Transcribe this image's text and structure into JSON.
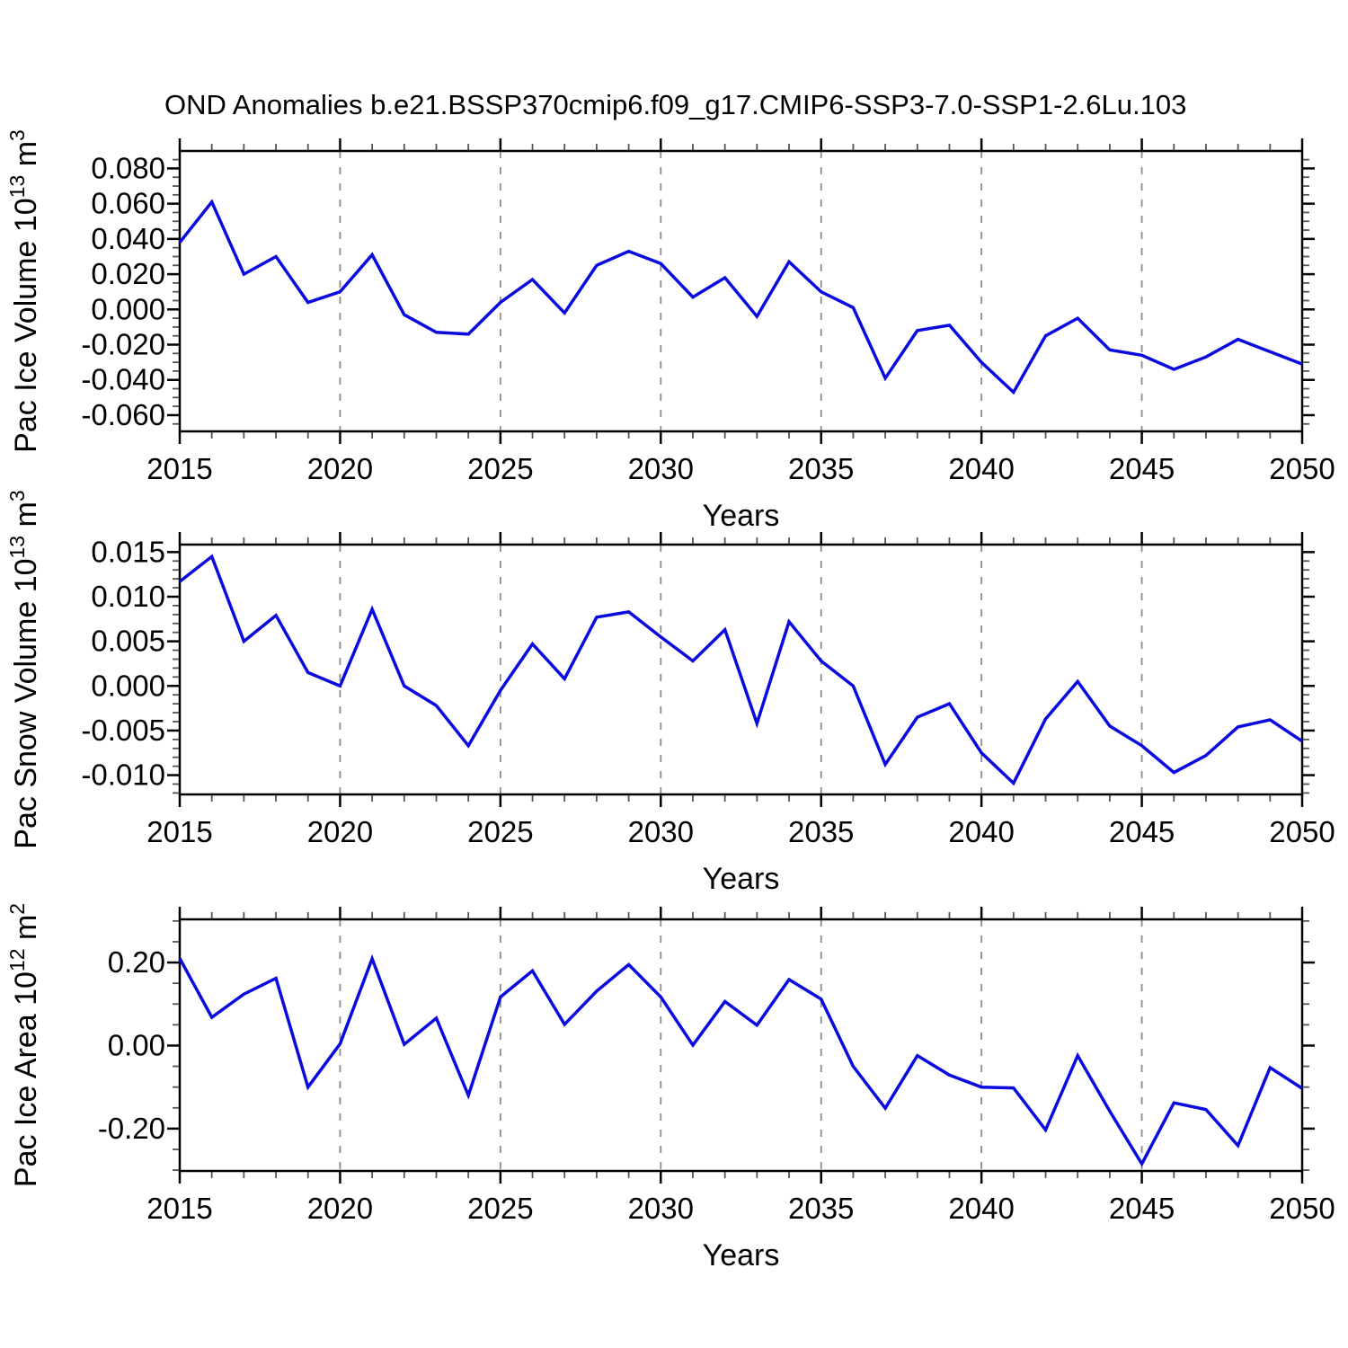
{
  "chart_data": {
    "type": "line",
    "title": "OND Anomalies b.e21.BSSP370cmip6.f09_g17.CMIP6-SSP3-7.0-SSP1-2.6Lu.103",
    "x_label": "Years",
    "x_range": [
      2015,
      2050
    ],
    "x_major_ticks": [
      2015,
      2020,
      2025,
      2030,
      2035,
      2040,
      2045,
      2050
    ],
    "x_major_tick_labels": [
      "2015",
      "2020",
      "2025",
      "2030",
      "2035",
      "2040",
      "2045",
      "2050"
    ],
    "x_minor_step": 1,
    "x_gridline_years": [
      2020,
      2025,
      2030,
      2035,
      2040,
      2045
    ],
    "grid_style": "dashed",
    "legend": "none",
    "line_color": "#0a0ae0",
    "grid_color": "#8c8c8c",
    "axis_color": "#000000",
    "minor_tick_color": "#555555",
    "years": [
      2015,
      2016,
      2017,
      2018,
      2019,
      2020,
      2021,
      2022,
      2023,
      2024,
      2025,
      2026,
      2027,
      2028,
      2029,
      2030,
      2031,
      2032,
      2033,
      2034,
      2035,
      2036,
      2037,
      2038,
      2039,
      2040,
      2041,
      2042,
      2043,
      2044,
      2045,
      2046,
      2047,
      2048,
      2049,
      2050
    ],
    "panels": [
      {
        "id": "pac-ice-volume",
        "ylabel_runs": [
          {
            "t": "Pac Ice Volume 10"
          },
          {
            "t": "13",
            "sup": true
          },
          {
            "t": " m"
          },
          {
            "t": "3",
            "sup": true
          }
        ],
        "ylim": [
          -0.0692,
          0.0899
        ],
        "y_major_ticks": [
          0.08,
          0.06,
          0.04,
          0.02,
          0.0,
          -0.02,
          -0.04,
          -0.06
        ],
        "y_major_tick_labels": [
          "0.080",
          "0.060",
          "0.040",
          "0.020",
          "0.000",
          "-0.020",
          "-0.040",
          "-0.060"
        ],
        "y_minor_step": 0.005,
        "values": [
          0.038,
          0.061,
          0.02,
          0.03,
          0.004,
          0.01,
          0.031,
          -0.003,
          -0.013,
          -0.014,
          0.004,
          0.017,
          -0.002,
          0.025,
          0.033,
          0.026,
          0.007,
          0.018,
          -0.004,
          0.027,
          0.01,
          0.001,
          -0.039,
          -0.012,
          -0.009,
          -0.03,
          -0.047,
          -0.015,
          -0.005,
          -0.023,
          -0.026,
          -0.034,
          -0.027,
          -0.017,
          -0.024,
          -0.031
        ]
      },
      {
        "id": "pac-snow-volume",
        "ylabel_runs": [
          {
            "t": "Pac Snow Volume 10"
          },
          {
            "t": "13",
            "sup": true
          },
          {
            "t": " m"
          },
          {
            "t": "3",
            "sup": true
          }
        ],
        "ylim": [
          -0.01216,
          0.01584
        ],
        "y_major_ticks": [
          0.015,
          0.01,
          0.005,
          0.0,
          -0.005,
          -0.01
        ],
        "y_major_tick_labels": [
          "0.015",
          "0.010",
          "0.005",
          "0.000",
          "-0.005",
          "-0.010"
        ],
        "y_minor_step": 0.001,
        "values": [
          0.0117,
          0.0145,
          0.005,
          0.0079,
          0.0015,
          0.0,
          0.0086,
          0.0,
          -0.0022,
          -0.0067,
          -0.0005,
          0.0047,
          0.0008,
          0.0077,
          0.0083,
          0.0055,
          0.0028,
          0.0063,
          -0.0042,
          0.0072,
          0.0028,
          0.0,
          -0.0088,
          -0.0035,
          -0.002,
          -0.0075,
          -0.0109,
          -0.0037,
          0.0005,
          -0.0045,
          -0.0067,
          -0.0097,
          -0.0078,
          -0.0046,
          -0.0038,
          -0.0062
        ]
      },
      {
        "id": "pac-ice-area",
        "ylabel_runs": [
          {
            "t": "Pac Ice Area 10"
          },
          {
            "t": "12",
            "sup": true
          },
          {
            "t": " m"
          },
          {
            "t": "2",
            "sup": true
          }
        ],
        "ylim": [
          -0.302,
          0.304
        ],
        "y_major_ticks": [
          0.2,
          0.0,
          -0.2
        ],
        "y_major_tick_labels": [
          "0.20",
          "0.00",
          "-0.20"
        ],
        "y_minor_step": 0.05,
        "values": [
          0.21,
          0.068,
          0.124,
          0.162,
          -0.1,
          0.004,
          0.209,
          0.003,
          0.066,
          -0.12,
          0.117,
          0.18,
          0.051,
          0.131,
          0.195,
          0.117,
          0.001,
          0.106,
          0.049,
          0.159,
          0.112,
          -0.05,
          -0.151,
          -0.024,
          -0.071,
          -0.1,
          -0.102,
          -0.203,
          -0.024,
          -0.158,
          -0.285,
          -0.138,
          -0.154,
          -0.241,
          -0.053,
          -0.103
        ]
      }
    ]
  }
}
